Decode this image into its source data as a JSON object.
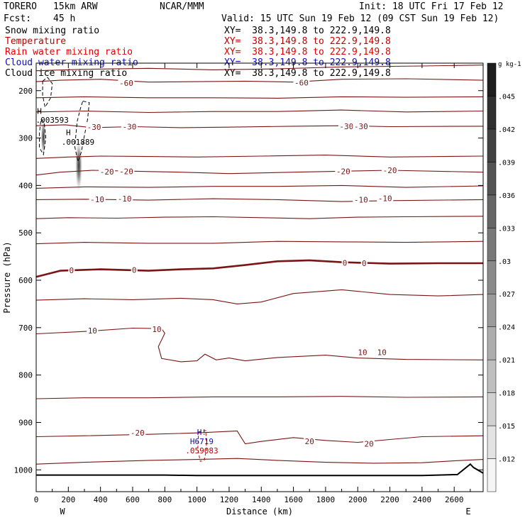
{
  "header": {
    "model": "TORERO",
    "resolution": "15km ARW",
    "center": "NCAR/MMM",
    "init": "Init: 18 UTC Fri 17 Feb 12",
    "fcst_label": "Fcst:",
    "fcst_value": "45 h",
    "valid": "Valid: 15 UTC Sun 19 Feb 12 (09 CST Sun 19 Feb 12)"
  },
  "fields": [
    {
      "name": "Snow mixing ratio",
      "xy": "XY=  38.3,149.8 to 222.9,149.8",
      "color": "#000000"
    },
    {
      "name": "Temperature",
      "xy": "XY=  38.3,149.8 to 222.9,149.8",
      "color": "#c00000"
    },
    {
      "name": "Rain water mixing ratio",
      "xy": "XY=  38.3,149.8 to 222.9,149.8",
      "color": "#e00000"
    },
    {
      "name": "Cloud water mixing ratio",
      "xy": "XY=  38.3,149.8 to 222.9,149.8",
      "color": "#1010b0"
    },
    {
      "name": "Cloud ice mixing ratio",
      "xy": "XY=  38.3,149.8 to 222.9,149.8",
      "color": "#000000"
    }
  ],
  "colors": {
    "temperature": "#7a1515",
    "zero_isotherm": "#7a1515",
    "cloud_water": "#1010b0",
    "rain": "#c00000",
    "terrain": "#000000"
  },
  "chart_data": {
    "type": "cross-section",
    "xlabel": "Distance (km)",
    "ylabel": "Pressure (hPa)",
    "xlim": [
      0,
      2780
    ],
    "ylim": [
      1046,
      142
    ],
    "x_ticks": [
      0,
      200,
      400,
      600,
      800,
      1000,
      1200,
      1400,
      1600,
      1800,
      2000,
      2200,
      2400,
      2600
    ],
    "x_tick_labels": [
      "0",
      "200",
      "400",
      "600",
      "800",
      "1000",
      "1200",
      "1400",
      "1600",
      "1800",
      "2000",
      "2200",
      "2400",
      "2600"
    ],
    "y_ticks": [
      200,
      300,
      400,
      500,
      600,
      700,
      800,
      900,
      1000
    ],
    "y_tick_labels": [
      "200",
      "300",
      "400",
      "500",
      "600",
      "700",
      "800",
      "900",
      "1000"
    ],
    "left_endpoint": "W",
    "right_endpoint": "E",
    "temperature_contours": [
      {
        "label": "-60",
        "points": [
          [
            0,
            158
          ],
          [
            300,
            155
          ],
          [
            700,
            153
          ],
          [
            1100,
            156
          ],
          [
            1500,
            154
          ],
          [
            1900,
            150
          ],
          [
            2400,
            148
          ],
          [
            2780,
            146
          ]
        ]
      },
      {
        "label": "-60",
        "points": [
          [
            0,
            181
          ],
          [
            150,
            178
          ],
          [
            400,
            176
          ],
          [
            700,
            182
          ],
          [
            1000,
            181
          ],
          [
            1300,
            180
          ],
          [
            1600,
            182
          ],
          [
            1900,
            176
          ],
          [
            2300,
            175
          ],
          [
            2780,
            178
          ]
        ]
      },
      {
        "label": "",
        "points": [
          [
            0,
            215
          ],
          [
            300,
            213
          ],
          [
            700,
            215
          ],
          [
            1100,
            215
          ],
          [
            1500,
            216
          ],
          [
            1900,
            213
          ],
          [
            2300,
            214
          ],
          [
            2780,
            213
          ]
        ]
      },
      {
        "label": "",
        "points": [
          [
            0,
            245
          ],
          [
            300,
            243
          ],
          [
            700,
            246
          ],
          [
            1100,
            244
          ],
          [
            1500,
            244
          ],
          [
            1900,
            241
          ],
          [
            2300,
            245
          ],
          [
            2780,
            243
          ]
        ]
      },
      {
        "label": "-30",
        "points": [
          [
            0,
            274
          ],
          [
            180,
            272
          ],
          [
            350,
            278
          ],
          [
            600,
            276
          ],
          [
            900,
            278
          ],
          [
            1200,
            277
          ],
          [
            1600,
            275
          ],
          [
            1900,
            274
          ],
          [
            2200,
            276
          ],
          [
            2780,
            275
          ]
        ]
      },
      {
        "label": "",
        "points": [
          [
            0,
            343
          ],
          [
            200,
            340
          ],
          [
            400,
            338
          ],
          [
            700,
            339
          ],
          [
            1000,
            340
          ],
          [
            1400,
            338
          ],
          [
            1800,
            336
          ],
          [
            2200,
            340
          ],
          [
            2780,
            338
          ]
        ]
      },
      {
        "label": "-20",
        "points": [
          [
            0,
            378
          ],
          [
            150,
            372
          ],
          [
            350,
            368
          ],
          [
            600,
            370
          ],
          [
            900,
            372
          ],
          [
            1200,
            375
          ],
          [
            1600,
            372
          ],
          [
            1900,
            370
          ],
          [
            2200,
            368
          ],
          [
            2780,
            372
          ]
        ]
      },
      {
        "label": "",
        "points": [
          [
            0,
            406
          ],
          [
            300,
            403
          ],
          [
            700,
            404
          ],
          [
            1100,
            402
          ],
          [
            1500,
            402
          ],
          [
            1900,
            400
          ],
          [
            2300,
            404
          ],
          [
            2780,
            401
          ]
        ]
      },
      {
        "label": "-10",
        "points": [
          [
            0,
            430
          ],
          [
            300,
            429
          ],
          [
            700,
            431
          ],
          [
            1100,
            428
          ],
          [
            1500,
            430
          ],
          [
            1900,
            434
          ],
          [
            2200,
            432
          ],
          [
            2780,
            430
          ]
        ]
      },
      {
        "label": "-10",
        "points": [
          [
            0,
            470
          ],
          [
            200,
            468
          ],
          [
            500,
            469
          ],
          [
            800,
            467
          ],
          [
            1100,
            466
          ],
          [
            1400,
            468
          ],
          [
            1700,
            470
          ],
          [
            2000,
            467
          ],
          [
            2300,
            466
          ],
          [
            2780,
            465
          ]
        ]
      },
      {
        "label": "",
        "points": [
          [
            0,
            523
          ],
          [
            300,
            520
          ],
          [
            700,
            522
          ],
          [
            1100,
            522
          ],
          [
            1500,
            518
          ],
          [
            1900,
            519
          ],
          [
            2300,
            520
          ],
          [
            2780,
            518
          ]
        ]
      },
      {
        "label": "0",
        "bold": true,
        "points": [
          [
            0,
            593
          ],
          [
            150,
            580
          ],
          [
            400,
            577
          ],
          [
            700,
            580
          ],
          [
            900,
            577
          ],
          [
            1100,
            575
          ],
          [
            1300,
            568
          ],
          [
            1500,
            560
          ],
          [
            1700,
            558
          ],
          [
            1900,
            562
          ],
          [
            2200,
            565
          ],
          [
            2500,
            564
          ],
          [
            2780,
            564
          ]
        ]
      },
      {
        "label": "",
        "points": [
          [
            0,
            642
          ],
          [
            300,
            639
          ],
          [
            600,
            641
          ],
          [
            900,
            638
          ],
          [
            1100,
            641
          ],
          [
            1250,
            650
          ],
          [
            1400,
            646
          ],
          [
            1600,
            628
          ],
          [
            1900,
            620
          ],
          [
            2200,
            630
          ],
          [
            2500,
            633
          ],
          [
            2780,
            630
          ]
        ]
      },
      {
        "label": "10",
        "points": [
          [
            0,
            713
          ],
          [
            300,
            708
          ],
          [
            600,
            701
          ],
          [
            780,
            702
          ],
          [
            800,
            712
          ],
          [
            760,
            740
          ],
          [
            780,
            765
          ],
          [
            900,
            772
          ],
          [
            1000,
            770
          ],
          [
            1050,
            756
          ],
          [
            1120,
            768
          ],
          [
            1200,
            764
          ],
          [
            1300,
            770
          ],
          [
            1500,
            763
          ],
          [
            1800,
            758
          ],
          [
            2000,
            764
          ],
          [
            2300,
            767
          ],
          [
            2780,
            768
          ]
        ]
      },
      {
        "label": "",
        "points": [
          [
            0,
            850
          ],
          [
            300,
            848
          ],
          [
            700,
            848
          ],
          [
            1100,
            846
          ],
          [
            1500,
            846
          ],
          [
            1900,
            845
          ],
          [
            2300,
            847
          ],
          [
            2780,
            846
          ]
        ]
      },
      {
        "label": "-20",
        "points": [
          [
            0,
            930
          ],
          [
            300,
            928
          ],
          [
            700,
            925
          ],
          [
            1000,
            922
          ],
          [
            1250,
            918
          ],
          [
            1300,
            945
          ],
          [
            1400,
            940
          ],
          [
            1600,
            932
          ],
          [
            1800,
            938
          ],
          [
            2000,
            942
          ],
          [
            2200,
            936
          ],
          [
            2400,
            930
          ],
          [
            2780,
            928
          ]
        ]
      },
      {
        "label": "",
        "points": [
          [
            0,
            988
          ],
          [
            300,
            984
          ],
          [
            700,
            980
          ],
          [
            1000,
            978
          ],
          [
            1250,
            976
          ],
          [
            1500,
            980
          ],
          [
            1800,
            984
          ],
          [
            2100,
            986
          ],
          [
            2400,
            985
          ],
          [
            2650,
            980
          ],
          [
            2780,
            978
          ]
        ]
      }
    ],
    "contour_labels": [
      {
        "text": "-60",
        "x": 560,
        "p": 184
      },
      {
        "text": "-60",
        "x": 1650,
        "p": 183
      },
      {
        "text": "-30",
        "x": 580,
        "p": 276
      },
      {
        "text": "-30",
        "x": 1930,
        "p": 275
      },
      {
        "text": "-30",
        "x": 2020,
        "p": 275
      },
      {
        "text": "-30",
        "x": 360,
        "p": 277
      },
      {
        "text": "-20",
        "x": 440,
        "p": 371
      },
      {
        "text": "-20",
        "x": 560,
        "p": 370
      },
      {
        "text": "-20",
        "x": 1910,
        "p": 370
      },
      {
        "text": "-20",
        "x": 2200,
        "p": 368
      },
      {
        "text": "-10",
        "x": 380,
        "p": 429
      },
      {
        "text": "-10",
        "x": 550,
        "p": 428
      },
      {
        "text": "-10",
        "x": 2020,
        "p": 430
      },
      {
        "text": "-10",
        "x": 2170,
        "p": 427
      },
      {
        "text": "0",
        "x": 220,
        "p": 579
      },
      {
        "text": "0",
        "x": 610,
        "p": 578
      },
      {
        "text": "0",
        "x": 1920,
        "p": 563
      },
      {
        "text": "0",
        "x": 2040,
        "p": 564
      },
      {
        "text": "10",
        "x": 350,
        "p": 706
      },
      {
        "text": "10",
        "x": 750,
        "p": 703
      },
      {
        "text": "10",
        "x": 2030,
        "p": 752
      },
      {
        "text": "10",
        "x": 2150,
        "p": 752
      },
      {
        "text": "-20",
        "x": 630,
        "p": 922
      },
      {
        "text": "20",
        "x": 1700,
        "p": 940
      },
      {
        "text": "20",
        "x": 2070,
        "p": 945
      }
    ],
    "extrema_labels": [
      {
        "text": "H",
        "x": 20,
        "p": 243,
        "color": "#000000"
      },
      {
        "text": ".003593",
        "x": 100,
        "p": 262,
        "color": "#000000"
      },
      {
        "text": "H",
        "x": 200,
        "p": 288,
        "color": "#000000"
      },
      {
        "text": ".001889",
        "x": 260,
        "p": 308,
        "color": "#000000"
      },
      {
        "text": "H!",
        "x": 1030,
        "p": 920,
        "color": "#1010b0"
      },
      {
        "text": "H6719",
        "x": 1030,
        "p": 940,
        "color": "#1010b0"
      },
      {
        "text": ".059083",
        "x": 1030,
        "p": 959,
        "color": "#c00000"
      }
    ],
    "cloud_ice_dashed": [
      {
        "points": [
          [
            40,
            180
          ],
          [
            70,
            172
          ],
          [
            100,
            185
          ],
          [
            90,
            215
          ],
          [
            55,
            235
          ],
          [
            40,
            210
          ],
          [
            40,
            180
          ]
        ]
      },
      {
        "points": [
          [
            30,
            260
          ],
          [
            50,
            268
          ],
          [
            60,
            300
          ],
          [
            45,
            335
          ],
          [
            20,
            320
          ],
          [
            20,
            290
          ],
          [
            30,
            260
          ]
        ]
      },
      {
        "points": [
          [
            290,
            222
          ],
          [
            330,
            225
          ],
          [
            320,
            260
          ],
          [
            300,
            295
          ],
          [
            280,
            330
          ],
          [
            260,
            350
          ],
          [
            240,
            318
          ],
          [
            255,
            265
          ],
          [
            275,
            238
          ],
          [
            290,
            222
          ]
        ]
      }
    ],
    "snow_mixing_ratio_shading": [
      {
        "x": 45,
        "p": 298,
        "rx": 16,
        "rp": 40,
        "max": 0.0036
      },
      {
        "x": 265,
        "p": 358,
        "rx": 22,
        "rp": 55,
        "max": 0.0019
      }
    ],
    "cloud_water_dashed": [
      {
        "points": [
          [
            1010,
            920
          ],
          [
            1055,
            917
          ],
          [
            1060,
            955
          ],
          [
            1045,
            980
          ],
          [
            1020,
            982
          ],
          [
            1005,
            955
          ],
          [
            1010,
            920
          ]
        ]
      }
    ],
    "terrain": [
      [
        0,
        1011
      ],
      [
        400,
        1011
      ],
      [
        800,
        1011
      ],
      [
        1000,
        1012
      ],
      [
        1200,
        1012
      ],
      [
        1600,
        1012
      ],
      [
        2000,
        1012
      ],
      [
        2400,
        1012
      ],
      [
        2620,
        1010
      ],
      [
        2700,
        988
      ],
      [
        2720,
        995
      ],
      [
        2780,
        1007
      ]
    ],
    "colorbar": {
      "unit": "g kg-1",
      "labels": [
        ".012",
        ".015",
        ".018",
        ".021",
        ".024",
        ".027",
        ".03",
        ".033",
        ".036",
        ".039",
        ".042",
        ".045"
      ],
      "values": [
        0.012,
        0.015,
        0.018,
        0.021,
        0.024,
        0.027,
        0.03,
        0.033,
        0.036,
        0.039,
        0.042,
        0.045
      ]
    }
  }
}
